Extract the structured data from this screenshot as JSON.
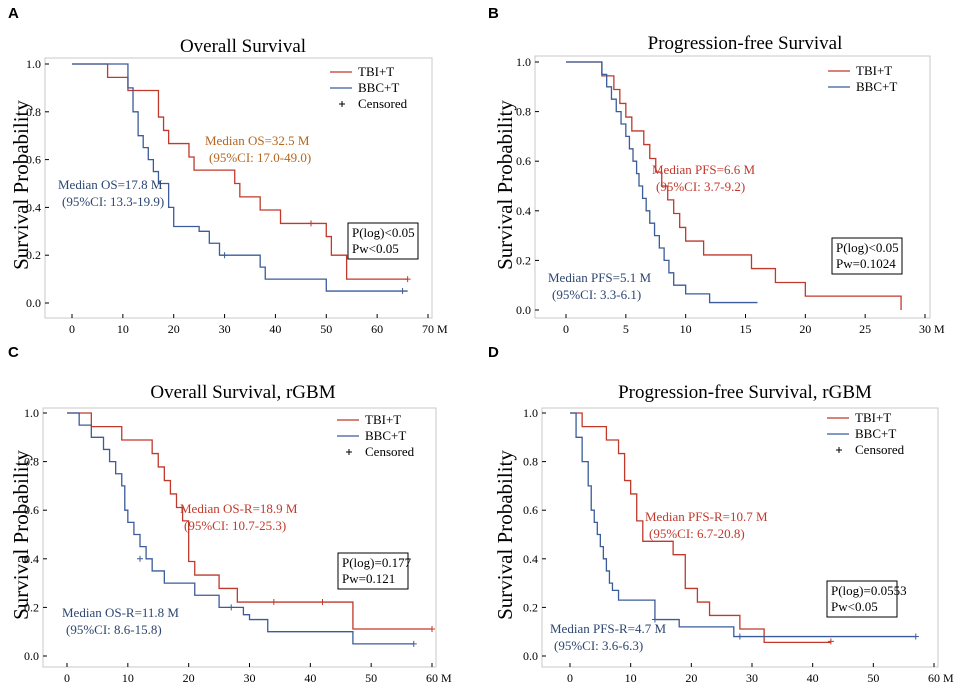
{
  "colors": {
    "red": "#c0392b",
    "blue": "#3b5b9a",
    "orange": "#b5651d",
    "navy": "#2c4670"
  },
  "chart_data": [
    {
      "type": "line",
      "panel": "A",
      "title": "Overall Survival",
      "xlabel": "",
      "ylabel": "Survival Probability",
      "xlim": [
        0,
        70
      ],
      "ylim": [
        0,
        1
      ],
      "x_ticks": [
        "0",
        "10",
        "20",
        "30",
        "40",
        "50",
        "60",
        "70 M"
      ],
      "y_ticks": [
        "0.0",
        "0.2",
        "0.4",
        "0.6",
        "0.8",
        "1.0"
      ],
      "legend": {
        "entries": [
          "TBI+T",
          "BBC+T",
          "Censored"
        ],
        "placement": "top-right"
      },
      "stats": [
        "P(log)<0.05",
        "Pw<0.05"
      ],
      "annotations": [
        {
          "lines": [
            "Median OS=32.5 M",
            "(95%CI: 17.0-49.0)"
          ],
          "color": "orange"
        },
        {
          "lines": [
            "Median OS=17.8 M",
            "(95%CI: 13.3-19.9)"
          ],
          "color": "navy"
        }
      ],
      "series": [
        {
          "name": "TBI+T",
          "color": "red",
          "steps": [
            [
              0,
              1.0
            ],
            [
              7,
              0.944
            ],
            [
              11,
              0.889
            ],
            [
              17,
              0.778
            ],
            [
              18,
              0.722
            ],
            [
              19,
              0.667
            ],
            [
              23,
              0.611
            ],
            [
              24,
              0.556
            ],
            [
              32,
              0.5
            ],
            [
              33,
              0.444
            ],
            [
              37,
              0.389
            ],
            [
              41,
              0.333
            ],
            [
              50,
              0.278
            ],
            [
              51,
              0.2
            ],
            [
              54,
              0.1
            ],
            [
              66,
              0.1
            ]
          ],
          "censored": [
            [
              47,
              0.333
            ],
            [
              66,
              0.1
            ]
          ]
        },
        {
          "name": "BBC+T",
          "color": "blue",
          "steps": [
            [
              0,
              1.0
            ],
            [
              11,
              0.9
            ],
            [
              12,
              0.8
            ],
            [
              13,
              0.7
            ],
            [
              14,
              0.65
            ],
            [
              15,
              0.6
            ],
            [
              16,
              0.55
            ],
            [
              17,
              0.5
            ],
            [
              19,
              0.4
            ],
            [
              20,
              0.32
            ],
            [
              25,
              0.3
            ],
            [
              27,
              0.25
            ],
            [
              29,
              0.2
            ],
            [
              32,
              0.2
            ],
            [
              37,
              0.15
            ],
            [
              38,
              0.1
            ],
            [
              50,
              0.05
            ],
            [
              66,
              0.05
            ]
          ],
          "censored": [
            [
              30,
              0.2
            ],
            [
              65,
              0.05
            ]
          ]
        }
      ]
    },
    {
      "type": "line",
      "panel": "B",
      "title": "Progression-free Survival",
      "xlabel": "",
      "ylabel": "Survival Probability",
      "xlim": [
        0,
        30
      ],
      "ylim": [
        0,
        1
      ],
      "x_ticks": [
        "0",
        "5",
        "10",
        "15",
        "20",
        "25",
        "30 M"
      ],
      "y_ticks": [
        "0.0",
        "0.2",
        "0.4",
        "0.6",
        "0.8",
        "1.0"
      ],
      "legend": {
        "entries": [
          "TBI+T",
          "BBC+T"
        ],
        "placement": "top-right"
      },
      "stats": [
        "P(log)<0.05",
        "Pw=0.1024"
      ],
      "annotations": [
        {
          "lines": [
            "Median PFS=6.6 M",
            "(95%CI: 3.7-9.2)"
          ],
          "color": "red"
        },
        {
          "lines": [
            "Median PFS=5.1 M",
            "(95%CI: 3.3-6.1)"
          ],
          "color": "navy"
        }
      ],
      "series": [
        {
          "name": "TBI+T",
          "color": "red",
          "steps": [
            [
              0,
              1.0
            ],
            [
              3,
              0.944
            ],
            [
              4,
              0.889
            ],
            [
              4.5,
              0.833
            ],
            [
              5,
              0.778
            ],
            [
              5.5,
              0.722
            ],
            [
              6.5,
              0.667
            ],
            [
              7,
              0.611
            ],
            [
              7.5,
              0.556
            ],
            [
              8,
              0.5
            ],
            [
              8.5,
              0.444
            ],
            [
              9,
              0.389
            ],
            [
              9.5,
              0.333
            ],
            [
              10,
              0.278
            ],
            [
              11.5,
              0.222
            ],
            [
              15.5,
              0.167
            ],
            [
              17.5,
              0.111
            ],
            [
              20,
              0.056
            ],
            [
              28,
              0.0
            ]
          ],
          "censored": []
        },
        {
          "name": "BBC+T",
          "color": "blue",
          "steps": [
            [
              0,
              1.0
            ],
            [
              3,
              0.95
            ],
            [
              3.4,
              0.9
            ],
            [
              3.8,
              0.85
            ],
            [
              4.2,
              0.8
            ],
            [
              4.6,
              0.75
            ],
            [
              5,
              0.7
            ],
            [
              5.3,
              0.65
            ],
            [
              5.6,
              0.6
            ],
            [
              5.9,
              0.55
            ],
            [
              6.1,
              0.5
            ],
            [
              6.4,
              0.45
            ],
            [
              6.7,
              0.4
            ],
            [
              7,
              0.35
            ],
            [
              7.4,
              0.3
            ],
            [
              7.8,
              0.25
            ],
            [
              8.2,
              0.2
            ],
            [
              8.6,
              0.15
            ],
            [
              9,
              0.1
            ],
            [
              10,
              0.065
            ],
            [
              12,
              0.03
            ],
            [
              16,
              0.03
            ]
          ],
          "censored": []
        }
      ]
    },
    {
      "type": "line",
      "panel": "C",
      "title": "Overall Survival, rGBM",
      "xlabel": "",
      "ylabel": "Survival Probability",
      "xlim": [
        0,
        60
      ],
      "ylim": [
        0,
        1
      ],
      "x_ticks": [
        "0",
        "10",
        "20",
        "30",
        "40",
        "50",
        "60 M"
      ],
      "y_ticks": [
        "0.0",
        "0.2",
        "0.4",
        "0.6",
        "0.8",
        "1.0"
      ],
      "legend": {
        "entries": [
          "TBI+T",
          "BBC+T",
          "Censored"
        ],
        "placement": "top-right"
      },
      "stats": [
        "P(log)=0.177",
        "Pw=0.121"
      ],
      "annotations": [
        {
          "lines": [
            "Median OS-R=18.9 M",
            "(95%CI: 10.7-25.3)"
          ],
          "color": "red"
        },
        {
          "lines": [
            "Median OS-R=11.8 M",
            "(95%CI: 8.6-15.8)"
          ],
          "color": "navy"
        }
      ],
      "series": [
        {
          "name": "TBI+T",
          "color": "red",
          "steps": [
            [
              0,
              1.0
            ],
            [
              4,
              0.944
            ],
            [
              9,
              0.889
            ],
            [
              14,
              0.833
            ],
            [
              15,
              0.778
            ],
            [
              16,
              0.722
            ],
            [
              17,
              0.667
            ],
            [
              18,
              0.611
            ],
            [
              19,
              0.556
            ],
            [
              20,
              0.389
            ],
            [
              21,
              0.333
            ],
            [
              25,
              0.278
            ],
            [
              28,
              0.222
            ],
            [
              47,
              0.111
            ],
            [
              60,
              0.111
            ]
          ],
          "censored": [
            [
              34,
              0.222
            ],
            [
              42,
              0.222
            ],
            [
              60,
              0.111
            ]
          ]
        },
        {
          "name": "BBC+T",
          "color": "blue",
          "steps": [
            [
              0,
              1.0
            ],
            [
              2,
              0.95
            ],
            [
              4,
              0.9
            ],
            [
              6,
              0.85
            ],
            [
              7,
              0.8
            ],
            [
              8,
              0.75
            ],
            [
              9,
              0.7
            ],
            [
              9.5,
              0.6
            ],
            [
              10,
              0.55
            ],
            [
              11,
              0.5
            ],
            [
              12,
              0.45
            ],
            [
              13,
              0.4
            ],
            [
              14,
              0.35
            ],
            [
              16,
              0.3
            ],
            [
              21,
              0.25
            ],
            [
              25,
              0.2
            ],
            [
              29,
              0.17
            ],
            [
              30,
              0.15
            ],
            [
              33,
              0.1
            ],
            [
              47,
              0.05
            ],
            [
              57,
              0.05
            ]
          ],
          "censored": [
            [
              12,
              0.4
            ],
            [
              27,
              0.2
            ],
            [
              57,
              0.05
            ]
          ]
        }
      ]
    },
    {
      "type": "line",
      "panel": "D",
      "title": "Progression-free Survival, rGBM",
      "xlabel": "",
      "ylabel": "Survival Probability",
      "xlim": [
        0,
        60
      ],
      "ylim": [
        0,
        1
      ],
      "x_ticks": [
        "0",
        "10",
        "20",
        "30",
        "40",
        "50",
        "60 M"
      ],
      "y_ticks": [
        "0.0",
        "0.2",
        "0.4",
        "0.6",
        "0.8",
        "1.0"
      ],
      "legend": {
        "entries": [
          "TBI+T",
          "BBC+T",
          "Censored"
        ],
        "placement": "top-right"
      },
      "stats": [
        "P(log)=0.0553",
        "Pw<0.05"
      ],
      "annotations": [
        {
          "lines": [
            "Median PFS-R=10.7 M",
            "(95%CI: 6.7-20.8)"
          ],
          "color": "red"
        },
        {
          "lines": [
            "Median PFS-R=4.7 M",
            "(95%CI: 3.6-6.3)"
          ],
          "color": "navy"
        }
      ],
      "series": [
        {
          "name": "TBI+T",
          "color": "red",
          "steps": [
            [
              0,
              1.0
            ],
            [
              2,
              0.944
            ],
            [
              6,
              0.889
            ],
            [
              8,
              0.833
            ],
            [
              9,
              0.722
            ],
            [
              10,
              0.667
            ],
            [
              11,
              0.556
            ],
            [
              12,
              0.472
            ],
            [
              17,
              0.417
            ],
            [
              19,
              0.278
            ],
            [
              21,
              0.222
            ],
            [
              23,
              0.167
            ],
            [
              28,
              0.111
            ],
            [
              32,
              0.056
            ],
            [
              43,
              0.056
            ]
          ],
          "censored": [
            [
              43,
              0.06
            ]
          ]
        },
        {
          "name": "BBC+T",
          "color": "blue",
          "steps": [
            [
              0,
              1.0
            ],
            [
              1,
              0.9
            ],
            [
              2,
              0.8
            ],
            [
              3,
              0.7
            ],
            [
              3.5,
              0.6
            ],
            [
              4,
              0.55
            ],
            [
              4.5,
              0.5
            ],
            [
              5,
              0.45
            ],
            [
              5.5,
              0.4
            ],
            [
              6,
              0.35
            ],
            [
              6.5,
              0.3
            ],
            [
              7,
              0.27
            ],
            [
              8,
              0.23
            ],
            [
              14,
              0.15
            ],
            [
              18,
              0.12
            ],
            [
              27,
              0.08
            ],
            [
              57,
              0.08
            ]
          ],
          "censored": [
            [
              14,
              0.15
            ],
            [
              28,
              0.08
            ],
            [
              57,
              0.08
            ]
          ]
        }
      ]
    }
  ]
}
